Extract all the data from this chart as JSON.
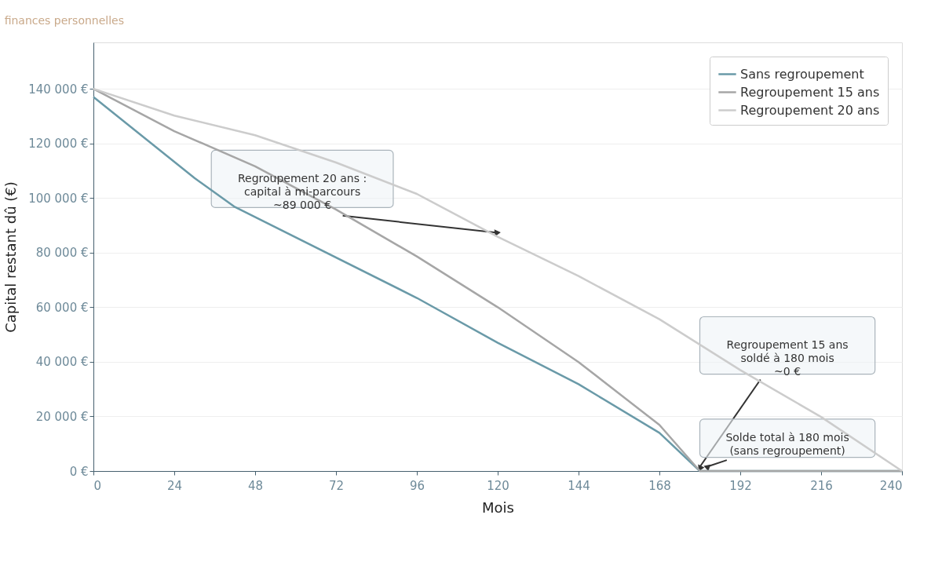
{
  "chart_data": {
    "type": "line",
    "subtitle": "finances personnelles",
    "xlabel": "Mois",
    "ylabel": "Capital restant dû (€)",
    "xlim": [
      0,
      240
    ],
    "xticks": [
      0,
      24,
      48,
      72,
      96,
      120,
      144,
      168,
      192,
      216,
      240
    ],
    "ylim": [
      0,
      157000
    ],
    "yticks": [
      {
        "value": 0,
        "label": "0 €"
      },
      {
        "value": 20000,
        "label": "20 000 €"
      },
      {
        "value": 40000,
        "label": "40 000 €"
      },
      {
        "value": 60000,
        "label": "60 000 €"
      },
      {
        "value": 80000,
        "label": "80 000 €"
      },
      {
        "value": 100000,
        "label": "100 000 €"
      },
      {
        "value": 120000,
        "label": "120 000 €"
      },
      {
        "value": 140000,
        "label": "140 000 €"
      }
    ],
    "grid": "y",
    "legend": "top right",
    "marker": "none",
    "line_style": "solid",
    "series": [
      {
        "name": "Sans regroupement",
        "color": "#6a9aa8",
        "x": [
          0,
          30,
          42,
          96,
          120,
          144,
          168,
          180,
          240
        ],
        "values": [
          137000,
          107300,
          96700,
          63400,
          47000,
          31800,
          14000,
          0,
          0
        ]
      },
      {
        "name": "Regroupement 15 ans",
        "color": "#a6a6a6",
        "x": [
          0,
          24,
          48,
          72,
          96,
          120,
          144,
          168,
          180,
          240
        ],
        "values": [
          140000,
          124500,
          111600,
          95800,
          78600,
          60000,
          39900,
          16900,
          0,
          0
        ]
      },
      {
        "name": "Regroupement 20 ans",
        "color": "#cccccc",
        "x": [
          0,
          24,
          48,
          72,
          96,
          120,
          144,
          168,
          192,
          216,
          240
        ],
        "values": [
          140000,
          130200,
          123000,
          113000,
          101500,
          85800,
          71400,
          55600,
          37000,
          19800,
          0
        ]
      }
    ],
    "annotations": [
      {
        "text": "Regroupement 20 ans :\ncapital à mi-parcours\n~89 000 €",
        "x": 120,
        "y": 85800
      },
      {
        "text": "Regroupement 15 ans\nsoldé à 180 mois\n~0 €",
        "x": 180,
        "y": 0
      },
      {
        "text": "Solde total à 180 mois\n(sans regroupement)",
        "x": 182,
        "y": 0
      }
    ]
  }
}
